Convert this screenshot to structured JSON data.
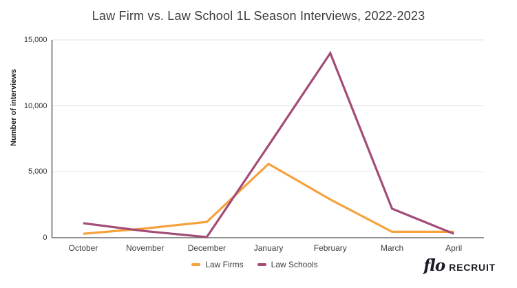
{
  "page_title": "Law Firm vs. Law School 1L Season Interviews, 2022-2023",
  "chart_data": {
    "type": "line",
    "title": "Law Firm vs. Law School 1L Season Interviews, 2022-2023",
    "xlabel": "",
    "ylabel": "Number of interviews",
    "categories": [
      "October",
      "November",
      "December",
      "January",
      "February",
      "March",
      "April"
    ],
    "series": [
      {
        "name": "Law Firms",
        "color": "#F5A23C",
        "values": [
          300,
          700,
          1200,
          5600,
          2900,
          450,
          450
        ]
      },
      {
        "name": "Law Schools",
        "color": "#A24C77",
        "values": [
          1100,
          500,
          50,
          7000,
          14000,
          2200,
          300
        ]
      }
    ],
    "ylim": [
      0,
      15000
    ],
    "yticks": [
      {
        "value": 0,
        "label": "0"
      },
      {
        "value": 5000,
        "label": "5,000"
      },
      {
        "value": 10000,
        "label": "10,000"
      },
      {
        "value": 15000,
        "label": "15,000"
      }
    ],
    "grid": "horizontal",
    "legend_position": "bottom"
  },
  "branding": {
    "logo_script": "flo",
    "logo_text": "RECRUIT"
  },
  "colors": {
    "grid": "#e3e3e3",
    "axis": "#6b6b6b",
    "title_text": "#3b3b3b",
    "tick_text": "#333333"
  }
}
